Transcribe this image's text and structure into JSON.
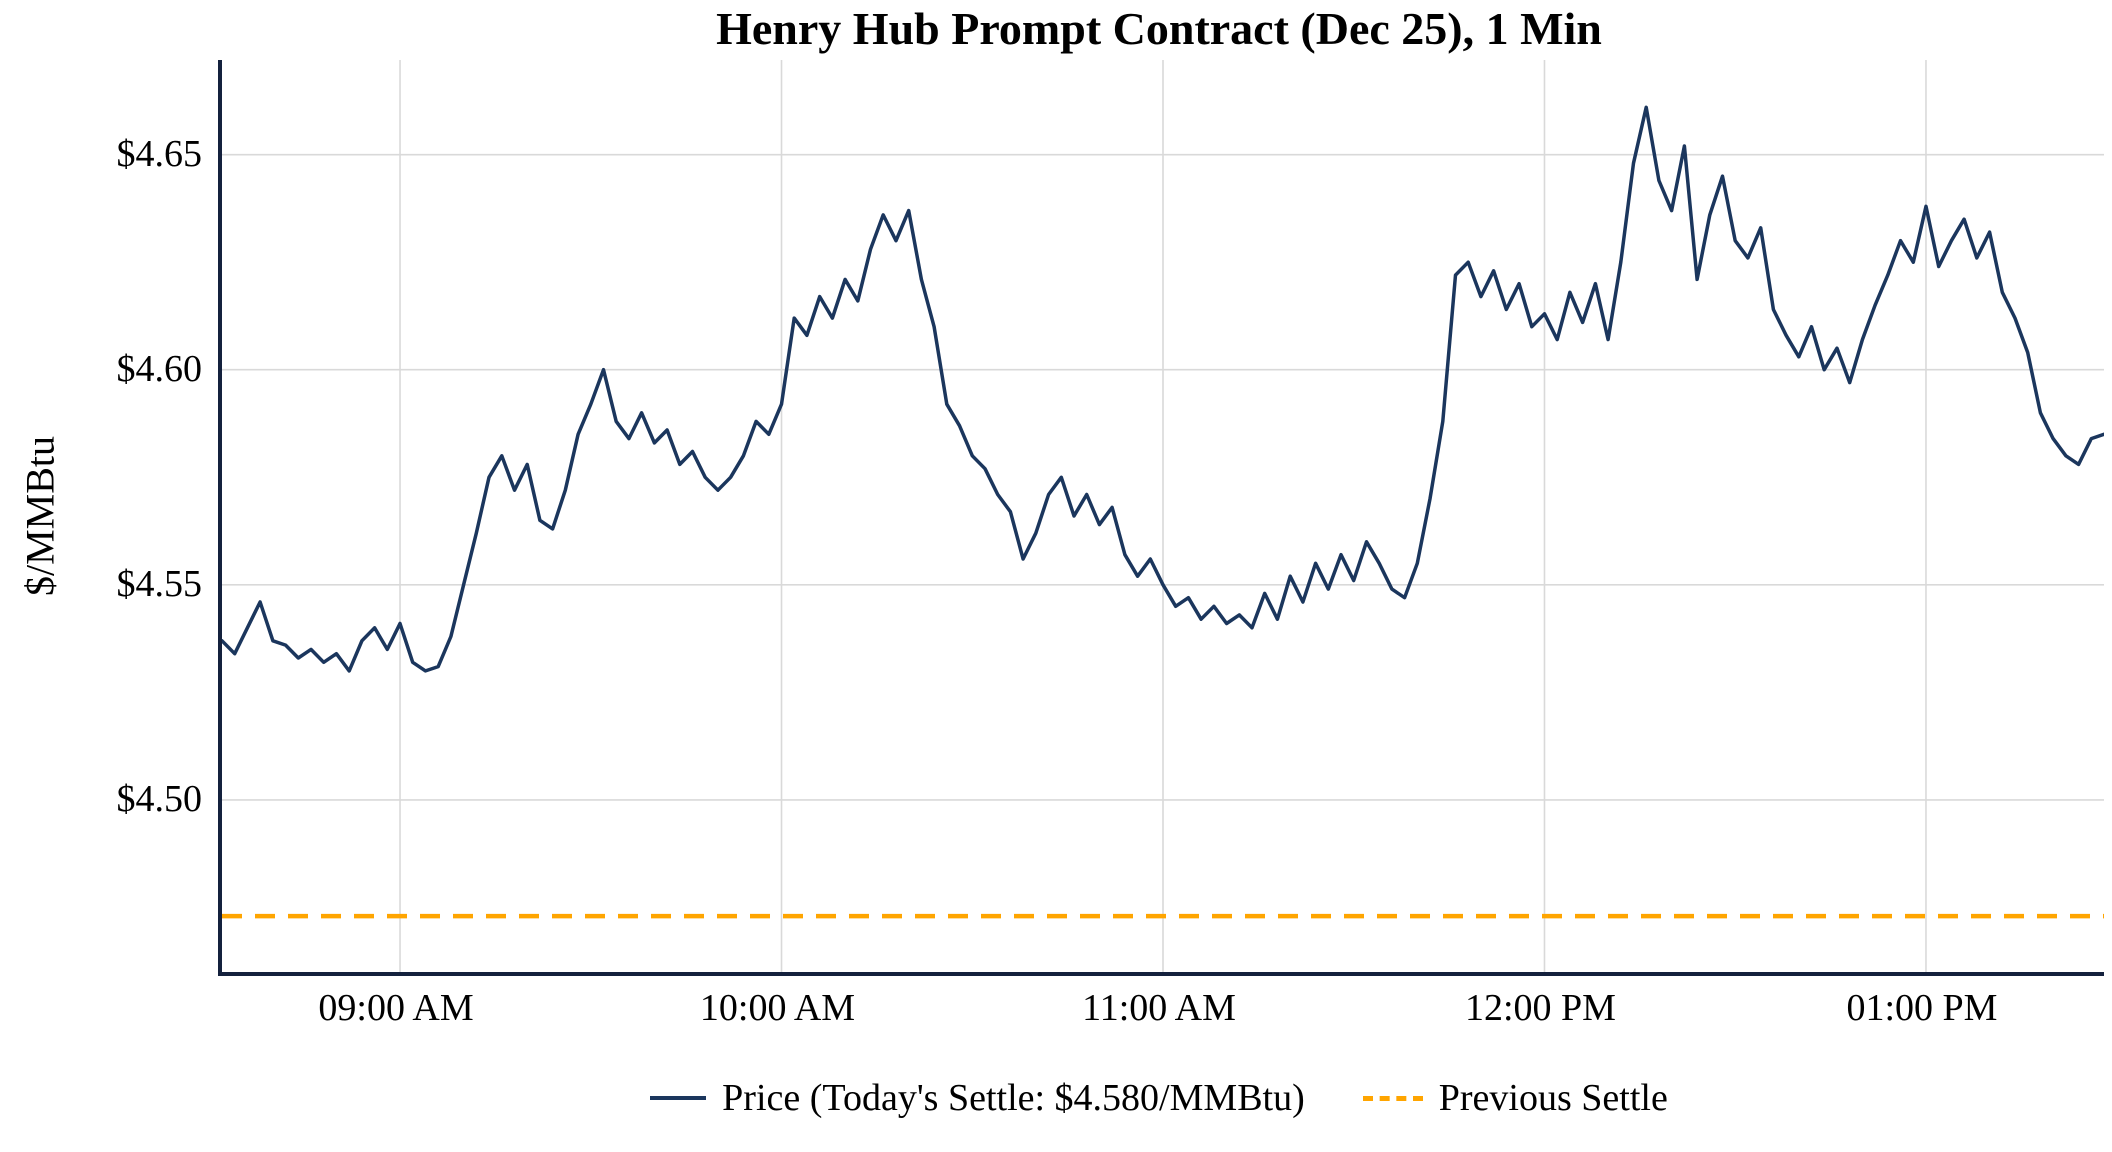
{
  "title": "Henry Hub Prompt Contract (Dec 25), 1 Min",
  "ylabel": "$/MMBtu",
  "legend": {
    "price_label": "Price (Today's Settle: $4.580/MMBtu)",
    "prev_settle_label": "Previous Settle"
  },
  "colors": {
    "price": "#1b365d",
    "prev_settle": "#FFA500",
    "grid": "#d9d9d9",
    "axis": "#14213d"
  },
  "chart_data": {
    "type": "line",
    "title": "Henry Hub Prompt Contract (Dec 25), 1 Min",
    "xlabel": "",
    "ylabel": "$/MMBtu",
    "x_start": "08:32 AM",
    "x_step_minutes": 2,
    "xlim_minutes": [
      0,
      296
    ],
    "ylim": [
      4.46,
      4.672
    ],
    "grid": true,
    "legend_position": "bottom",
    "y_ticks": [
      {
        "v": 4.5,
        "label": "$4.50"
      },
      {
        "v": 4.55,
        "label": "$4.55"
      },
      {
        "v": 4.6,
        "label": "$4.60"
      },
      {
        "v": 4.65,
        "label": "$4.65"
      }
    ],
    "x_ticks": [
      {
        "t": 28,
        "label": "09:00 AM"
      },
      {
        "t": 88,
        "label": "10:00 AM"
      },
      {
        "t": 148,
        "label": "11:00 AM"
      },
      {
        "t": 208,
        "label": "12:00 PM"
      },
      {
        "t": 268,
        "label": "01:00 PM"
      }
    ],
    "todays_settle": 4.58,
    "previous_settle": 4.473,
    "series": [
      {
        "name": "Price",
        "values": [
          4.537,
          4.534,
          4.54,
          4.546,
          4.537,
          4.536,
          4.533,
          4.535,
          4.532,
          4.534,
          4.53,
          4.537,
          4.54,
          4.535,
          4.541,
          4.532,
          4.53,
          4.531,
          4.538,
          4.55,
          4.562,
          4.575,
          4.58,
          4.572,
          4.578,
          4.565,
          4.563,
          4.572,
          4.585,
          4.592,
          4.6,
          4.588,
          4.584,
          4.59,
          4.583,
          4.586,
          4.578,
          4.581,
          4.575,
          4.572,
          4.575,
          4.58,
          4.588,
          4.585,
          4.592,
          4.612,
          4.608,
          4.617,
          4.612,
          4.621,
          4.616,
          4.628,
          4.636,
          4.63,
          4.637,
          4.621,
          4.61,
          4.592,
          4.587,
          4.58,
          4.577,
          4.571,
          4.567,
          4.556,
          4.562,
          4.571,
          4.575,
          4.566,
          4.571,
          4.564,
          4.568,
          4.557,
          4.552,
          4.556,
          4.55,
          4.545,
          4.547,
          4.542,
          4.545,
          4.541,
          4.543,
          4.54,
          4.548,
          4.542,
          4.552,
          4.546,
          4.555,
          4.549,
          4.557,
          4.551,
          4.56,
          4.555,
          4.549,
          4.547,
          4.555,
          4.57,
          4.588,
          4.622,
          4.625,
          4.617,
          4.623,
          4.614,
          4.62,
          4.61,
          4.613,
          4.607,
          4.618,
          4.611,
          4.62,
          4.607,
          4.625,
          4.648,
          4.661,
          4.644,
          4.637,
          4.652,
          4.621,
          4.636,
          4.645,
          4.63,
          4.626,
          4.633,
          4.614,
          4.608,
          4.603,
          4.61,
          4.6,
          4.605,
          4.597,
          4.607,
          4.615,
          4.622,
          4.63,
          4.625,
          4.638,
          4.624,
          4.63,
          4.635,
          4.626,
          4.632,
          4.618,
          4.612,
          4.604,
          4.59,
          4.584,
          4.58,
          4.578,
          4.584,
          4.585
        ]
      }
    ]
  }
}
